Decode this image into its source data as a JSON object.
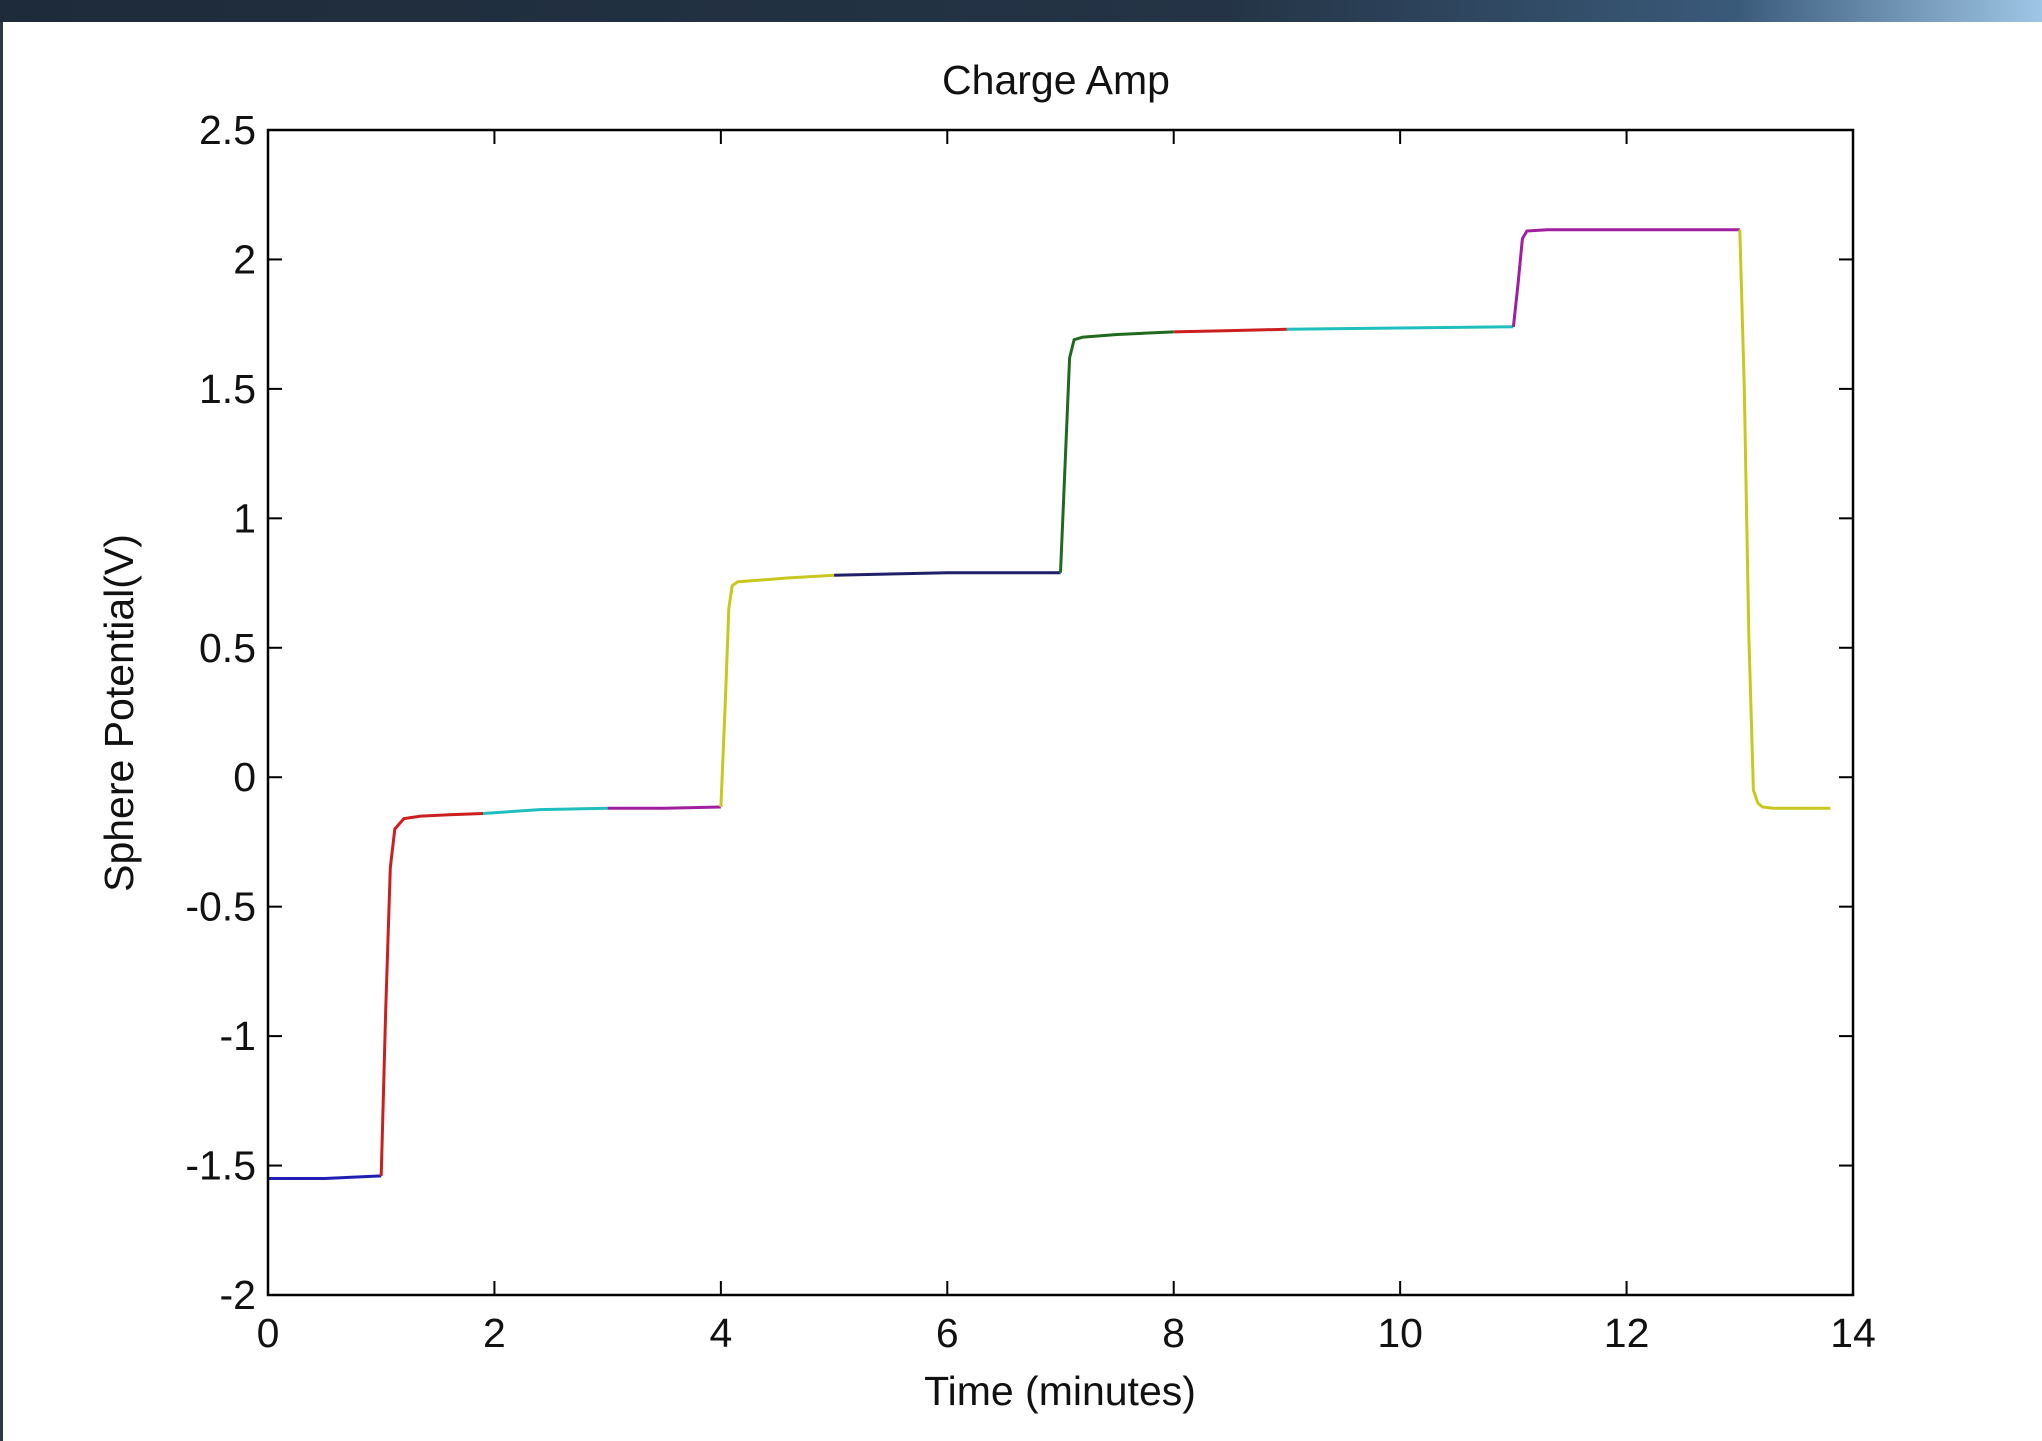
{
  "chart_data": {
    "type": "line",
    "title": "Charge Amp",
    "xlabel": "Time (minutes)",
    "ylabel": "Sphere Potential(V)",
    "xlim": [
      0,
      14
    ],
    "ylim": [
      -2,
      2.5
    ],
    "xticks": [
      0,
      2,
      4,
      6,
      8,
      10,
      12,
      14
    ],
    "yticks": [
      2.5,
      2,
      1.5,
      1,
      0.5,
      0,
      -0.5,
      -1,
      -1.5,
      -2
    ],
    "xtick_labels": [
      "0",
      "2",
      "4",
      "6",
      "8",
      "10",
      "12",
      "14"
    ],
    "ytick_labels": [
      "2.5",
      "2",
      "1.5",
      "1",
      "0.5",
      "0",
      "-0.5",
      "-1",
      "-1.5",
      "-2"
    ],
    "grid": false,
    "series": [
      {
        "color": "#1f1fb4",
        "x": [
          0,
          0.5,
          1.0
        ],
        "y": [
          -1.55,
          -1.55,
          -1.54
        ]
      },
      {
        "color": "#cc1f1f",
        "x": [
          1.0,
          1.04,
          1.08,
          1.12,
          1.2,
          1.35,
          1.6,
          1.9
        ],
        "y": [
          -1.54,
          -0.9,
          -0.35,
          -0.2,
          -0.16,
          -0.15,
          -0.145,
          -0.14
        ]
      },
      {
        "color": "#1fbfbf",
        "x": [
          1.9,
          2.4,
          3.0
        ],
        "y": [
          -0.14,
          -0.125,
          -0.12
        ]
      },
      {
        "color": "#a01fa0",
        "x": [
          3.0,
          3.5,
          4.0
        ],
        "y": [
          -0.12,
          -0.12,
          -0.115
        ]
      },
      {
        "color": "#c8c81f",
        "x": [
          4.0,
          4.04,
          4.07,
          4.1,
          4.15,
          4.3,
          4.6,
          5.0
        ],
        "y": [
          -0.115,
          0.3,
          0.65,
          0.74,
          0.755,
          0.76,
          0.77,
          0.78
        ]
      },
      {
        "color": "#1f1f6a",
        "x": [
          5.0,
          6.0,
          7.0
        ],
        "y": [
          0.78,
          0.79,
          0.79
        ]
      },
      {
        "color": "#1f6a1f",
        "x": [
          7.0,
          7.04,
          7.08,
          7.12,
          7.2,
          7.5,
          8.0
        ],
        "y": [
          0.79,
          1.2,
          1.62,
          1.69,
          1.7,
          1.71,
          1.72
        ]
      },
      {
        "color": "#cc1f1f",
        "x": [
          8.0,
          8.5,
          9.0
        ],
        "y": [
          1.72,
          1.725,
          1.73
        ]
      },
      {
        "color": "#1fbfbf",
        "x": [
          9.0,
          10.0,
          11.0
        ],
        "y": [
          1.73,
          1.735,
          1.74
        ]
      },
      {
        "color": "#a01fa0",
        "x": [
          11.0,
          11.04,
          11.08,
          11.12,
          11.3,
          12.0,
          13.0
        ],
        "y": [
          1.74,
          1.9,
          2.08,
          2.11,
          2.115,
          2.115,
          2.115
        ]
      },
      {
        "color": "#c8c81f",
        "x": [
          13.0,
          13.04,
          13.08,
          13.12,
          13.16,
          13.2,
          13.3,
          13.5,
          13.8
        ],
        "y": [
          2.115,
          1.5,
          0.55,
          -0.05,
          -0.1,
          -0.115,
          -0.12,
          -0.12,
          -0.12
        ]
      }
    ]
  }
}
